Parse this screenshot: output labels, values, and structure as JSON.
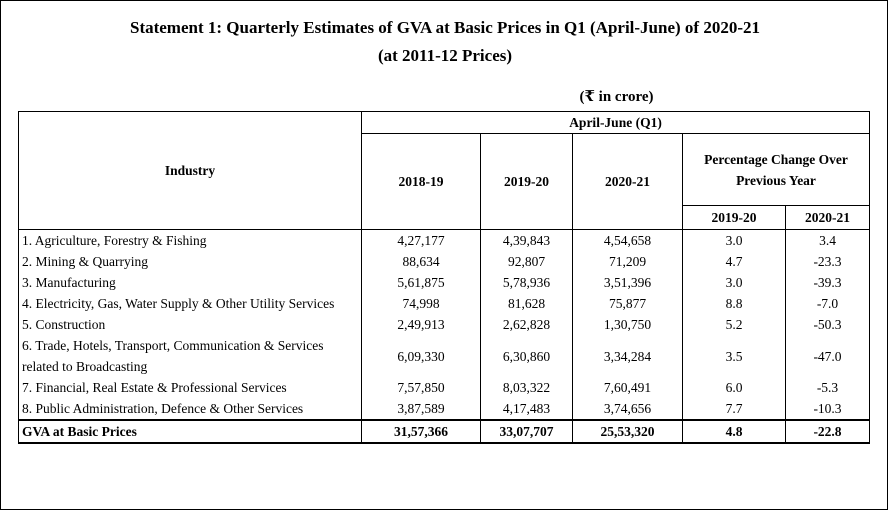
{
  "title_line1": "Statement 1: Quarterly Estimates of GVA at Basic Prices in Q1 (April-June) of 2020-21",
  "title_line2": "(at 2011-12 Prices)",
  "unit": "(₹ in crore)",
  "header": {
    "industry": "Industry",
    "period": "April-June (Q1)",
    "years": [
      "2018-19",
      "2019-20",
      "2020-21"
    ],
    "pct_change": "Percentage Change Over Previous Year",
    "pct_years": [
      "2019-20",
      "2020-21"
    ]
  },
  "rows": [
    {
      "industry": "1. Agriculture, Forestry & Fishing",
      "v1": "4,27,177",
      "v2": "4,39,843",
      "v3": "4,54,658",
      "p1": "3.0",
      "p2": "3.4"
    },
    {
      "industry": "2. Mining & Quarrying",
      "v1": "88,634",
      "v2": "92,807",
      "v3": "71,209",
      "p1": "4.7",
      "p2": "-23.3"
    },
    {
      "industry": "3. Manufacturing",
      "v1": "5,61,875",
      "v2": "5,78,936",
      "v3": "3,51,396",
      "p1": "3.0",
      "p2": "-39.3"
    },
    {
      "industry": "4. Electricity, Gas, Water Supply & Other Utility Services",
      "v1": "74,998",
      "v2": "81,628",
      "v3": "75,877",
      "p1": "8.8",
      "p2": "-7.0"
    },
    {
      "industry": "5. Construction",
      "v1": "2,49,913",
      "v2": "2,62,828",
      "v3": "1,30,750",
      "p1": "5.2",
      "p2": "-50.3"
    },
    {
      "industry": "6. Trade, Hotels, Transport, Communication & Services related to Broadcasting",
      "v1": "6,09,330",
      "v2": "6,30,860",
      "v3": "3,34,284",
      "p1": "3.5",
      "p2": "-47.0"
    },
    {
      "industry": "7. Financial, Real Estate & Professional Services",
      "v1": "7,57,850",
      "v2": "8,03,322",
      "v3": "7,60,491",
      "p1": "6.0",
      "p2": "-5.3"
    },
    {
      "industry": "8. Public Administration, Defence & Other Services",
      "v1": "3,87,589",
      "v2": "4,17,483",
      "v3": "3,74,656",
      "p1": "7.7",
      "p2": "-10.3"
    }
  ],
  "total": {
    "industry": "GVA at Basic Prices",
    "v1": "31,57,366",
    "v2": "33,07,707",
    "v3": "25,53,320",
    "p1": "4.8",
    "p2": "-22.8"
  }
}
